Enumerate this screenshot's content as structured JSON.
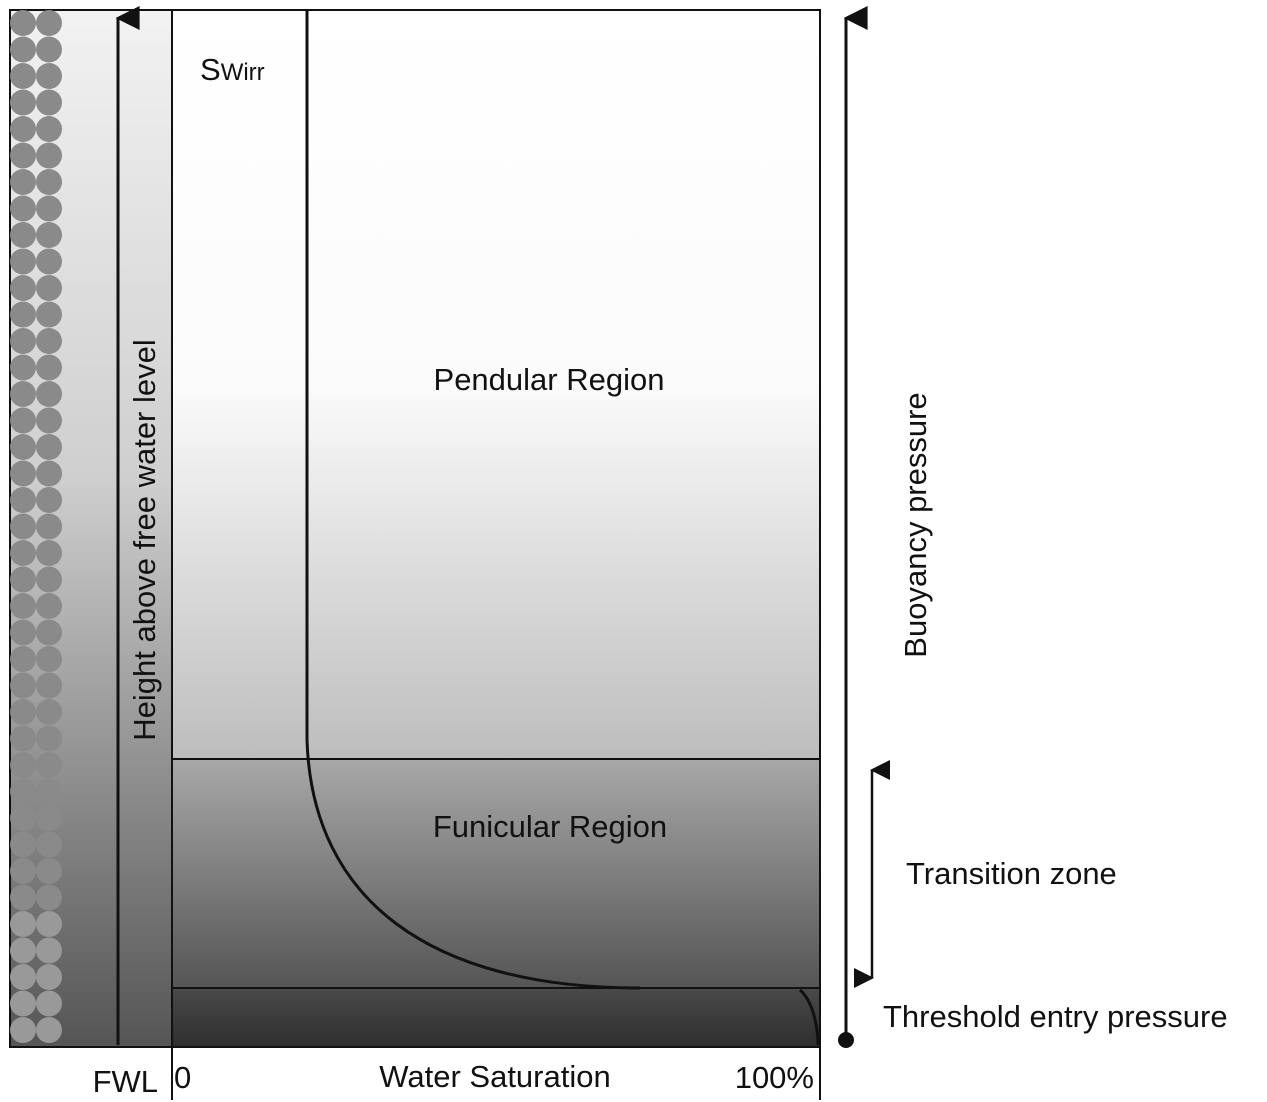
{
  "labels": {
    "swirr_main": "S",
    "swirr_sub": "Wirr",
    "pendular": "Pendular Region",
    "funicular": "Funicular Region",
    "y_axis": "Height above free water level",
    "x_axis": "Water Saturation",
    "x_start": "0",
    "x_end": "100%",
    "fwl": "FWL",
    "buoyancy": "Buoyancy pressure",
    "transition": "Transition zone",
    "threshold": "Threshold entry pressure"
  }
}
